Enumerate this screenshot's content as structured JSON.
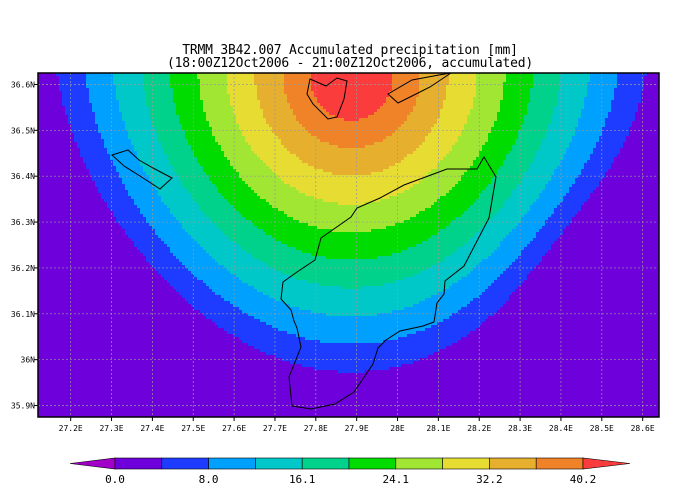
{
  "title": {
    "line1": "TRMM 3B42.007 Accumulated precipitation [mm]",
    "line2": "(18:00Z12Oct2006 - 21:00Z12Oct2006, accumulated)"
  },
  "map": {
    "lon_range": [
      27.12,
      28.64
    ],
    "lat_range": [
      35.875,
      36.625
    ],
    "lon_ticks": [
      "27.2E",
      "27.3E",
      "27.4E",
      "27.5E",
      "27.6E",
      "27.7E",
      "27.8E",
      "27.9E",
      "28E",
      "28.1E",
      "28.2E",
      "28.3E",
      "28.4E",
      "28.5E",
      "28.6E"
    ],
    "lat_ticks": [
      "36.6N",
      "36.5N",
      "36.4N",
      "36.3N",
      "36.2N",
      "36.1N",
      "36N",
      "35.9N"
    ],
    "grid": true
  },
  "colorbar": {
    "labels": [
      "0.0",
      "8.0",
      "16.1",
      "24.1",
      "32.2",
      "40.2"
    ],
    "colors": [
      "#a000c8",
      "#6e00dc",
      "#1e3cff",
      "#00a0ff",
      "#00c8c8",
      "#00d28c",
      "#00dc00",
      "#a0e632",
      "#e6dc32",
      "#e6af2d",
      "#f08228",
      "#fa3c3c"
    ]
  },
  "chart_data": {
    "type": "heatmap",
    "title": "TRMM 3B42.007 Accumulated precipitation [mm]",
    "subtitle": "(18:00Z12Oct2006 - 21:00Z12Oct2006, accumulated)",
    "x_axis": "longitude",
    "y_axis": "latitude",
    "xlim": [
      27.12,
      28.64
    ],
    "ylim": [
      35.875,
      36.625
    ],
    "levels": [
      0.0,
      4.0,
      8.0,
      12.0,
      16.1,
      20.1,
      24.1,
      28.1,
      32.2,
      36.2,
      40.2
    ],
    "peak_region": {
      "lon": 27.9,
      "lat": 36.6,
      "approx_value": 44
    },
    "grid": true
  }
}
